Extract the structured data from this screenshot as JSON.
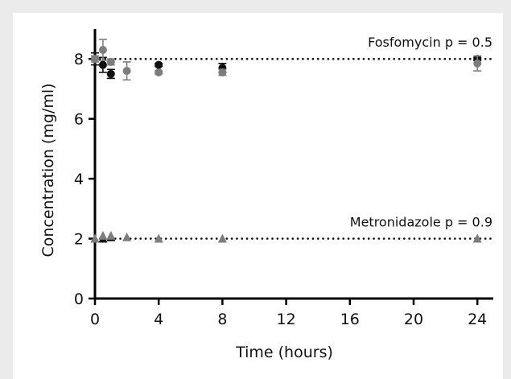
{
  "chart_data": {
    "type": "scatter",
    "title": "",
    "xlabel": "Time (hours)",
    "ylabel": "Concentration (mg/ml)",
    "xlim": [
      0,
      25
    ],
    "ylim": [
      0,
      9
    ],
    "xticks": [
      0,
      4,
      8,
      12,
      16,
      20,
      24
    ],
    "yticks": [
      0,
      2,
      4,
      6,
      8
    ],
    "grid": false,
    "reference_lines": [
      {
        "y": 8,
        "style": "dotted",
        "label": "Fosfomycin p = 0.5"
      },
      {
        "y": 2,
        "style": "dotted",
        "label": "Metronidazole p = 0.9"
      }
    ],
    "series": [
      {
        "marker": "circle",
        "color": "#111111",
        "points": [
          {
            "x": 0,
            "y": 8.0,
            "err": 0.2
          },
          {
            "x": 0.5,
            "y": 7.8,
            "err": 0.25
          },
          {
            "x": 1,
            "y": 7.5,
            "err": 0.15
          },
          {
            "x": 4,
            "y": 7.8,
            "err": 0.05
          },
          {
            "x": 8,
            "y": 7.7,
            "err": 0.15
          },
          {
            "x": 24,
            "y": 8.0,
            "err": 0.05
          }
        ]
      },
      {
        "marker": "circle",
        "color": "#7d7d7d",
        "points": [
          {
            "x": 0,
            "y": 8.0,
            "err": 0.1
          },
          {
            "x": 0.5,
            "y": 8.3,
            "err": 0.35
          },
          {
            "x": 1,
            "y": 7.9,
            "err": 0.1
          },
          {
            "x": 2,
            "y": 7.6,
            "err": 0.3
          },
          {
            "x": 4,
            "y": 7.55,
            "err": 0.05
          },
          {
            "x": 8,
            "y": 7.55,
            "err": 0.1
          },
          {
            "x": 24,
            "y": 7.85,
            "err": 0.25
          }
        ]
      },
      {
        "marker": "triangle",
        "color": "#111111",
        "points": [
          {
            "x": 0,
            "y": 2.0
          },
          {
            "x": 0.5,
            "y": 2.0
          },
          {
            "x": 1,
            "y": 2.05
          }
        ]
      },
      {
        "marker": "triangle",
        "color": "#7d7d7d",
        "points": [
          {
            "x": 0,
            "y": 2.0
          },
          {
            "x": 0.5,
            "y": 2.1
          },
          {
            "x": 1,
            "y": 2.1
          },
          {
            "x": 2,
            "y": 2.05
          },
          {
            "x": 4,
            "y": 2.0
          },
          {
            "x": 8,
            "y": 2.0
          },
          {
            "x": 24,
            "y": 2.0
          }
        ]
      }
    ]
  }
}
